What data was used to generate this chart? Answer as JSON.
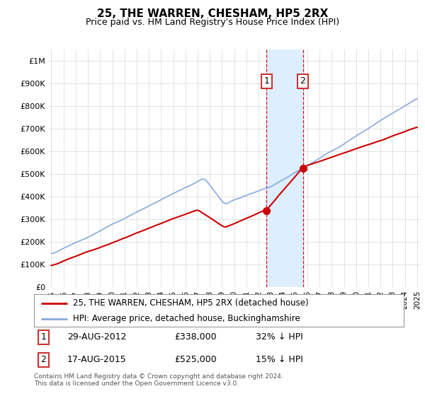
{
  "title": "25, THE WARREN, CHESHAM, HP5 2RX",
  "subtitle": "Price paid vs. HM Land Registry's House Price Index (HPI)",
  "ylabel_ticks": [
    "£0",
    "£100K",
    "£200K",
    "£300K",
    "£400K",
    "£500K",
    "£600K",
    "£700K",
    "£800K",
    "£900K",
    "£1M"
  ],
  "ytick_values": [
    0,
    100000,
    200000,
    300000,
    400000,
    500000,
    600000,
    700000,
    800000,
    900000,
    1000000
  ],
  "ylim": [
    0,
    1050000
  ],
  "xlim_start": 1994.8,
  "xlim_end": 2025.3,
  "marker1_x": 2012.66,
  "marker1_y": 338000,
  "marker2_x": 2015.63,
  "marker2_y": 525000,
  "highlight_color": "#ddeeff",
  "red_line_color": "#cc0000",
  "blue_line_color": "#88aadd",
  "legend_label1": "25, THE WARREN, CHESHAM, HP5 2RX (detached house)",
  "legend_label2": "HPI: Average price, detached house, Buckinghamshire",
  "marker1_date": "29-AUG-2012",
  "marker1_price": "£338,000",
  "marker1_hpi": "32% ↓ HPI",
  "marker2_date": "17-AUG-2015",
  "marker2_price": "£525,000",
  "marker2_hpi": "15% ↓ HPI",
  "footer": "Contains HM Land Registry data © Crown copyright and database right 2024.\nThis data is licensed under the Open Government Licence v3.0.",
  "background_color": "#ffffff",
  "grid_color": "#dddddd"
}
